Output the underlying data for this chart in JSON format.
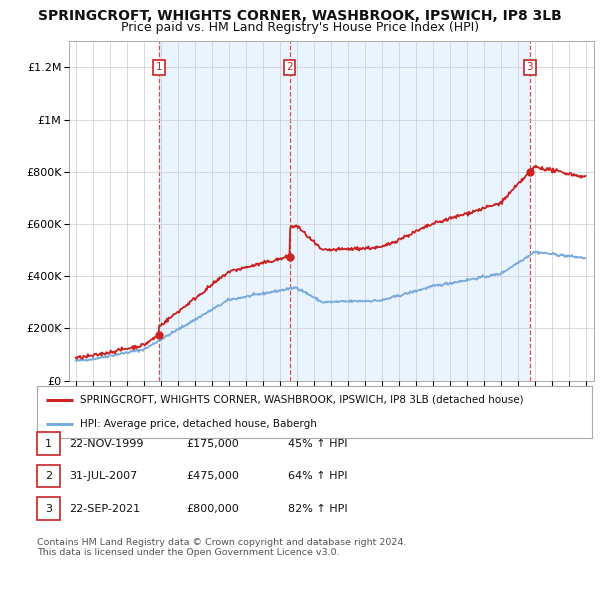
{
  "title": "SPRINGCROFT, WHIGHTS CORNER, WASHBROOK, IPSWICH, IP8 3LB",
  "subtitle": "Price paid vs. HM Land Registry's House Price Index (HPI)",
  "ylim": [
    0,
    1300000
  ],
  "yticks": [
    0,
    200000,
    400000,
    600000,
    800000,
    1000000,
    1200000
  ],
  "transaction_year_floats": [
    1999.894,
    2007.578,
    2021.722
  ],
  "transaction_prices": [
    175000,
    475000,
    800000
  ],
  "transaction_labels": [
    "1",
    "2",
    "3"
  ],
  "hpi_color": "#7aabdc",
  "price_color": "#cc2222",
  "shade_color": "#ddeeff",
  "legend_label_price": "SPRINGCROFT, WHIGHTS CORNER, WASHBROOK, IPSWICH, IP8 3LB (detached house)",
  "legend_label_hpi": "HPI: Average price, detached house, Babergh",
  "table_rows": [
    [
      "1",
      "22-NOV-1999",
      "£175,000",
      "45% ↑ HPI"
    ],
    [
      "2",
      "31-JUL-2007",
      "£475,000",
      "64% ↑ HPI"
    ],
    [
      "3",
      "22-SEP-2021",
      "£800,000",
      "82% ↑ HPI"
    ]
  ],
  "footnote": "Contains HM Land Registry data © Crown copyright and database right 2024.\nThis data is licensed under the Open Government Licence v3.0.",
  "bg_color": "#ffffff",
  "grid_color": "#cccccc",
  "title_fontsize": 10,
  "subtitle_fontsize": 9
}
